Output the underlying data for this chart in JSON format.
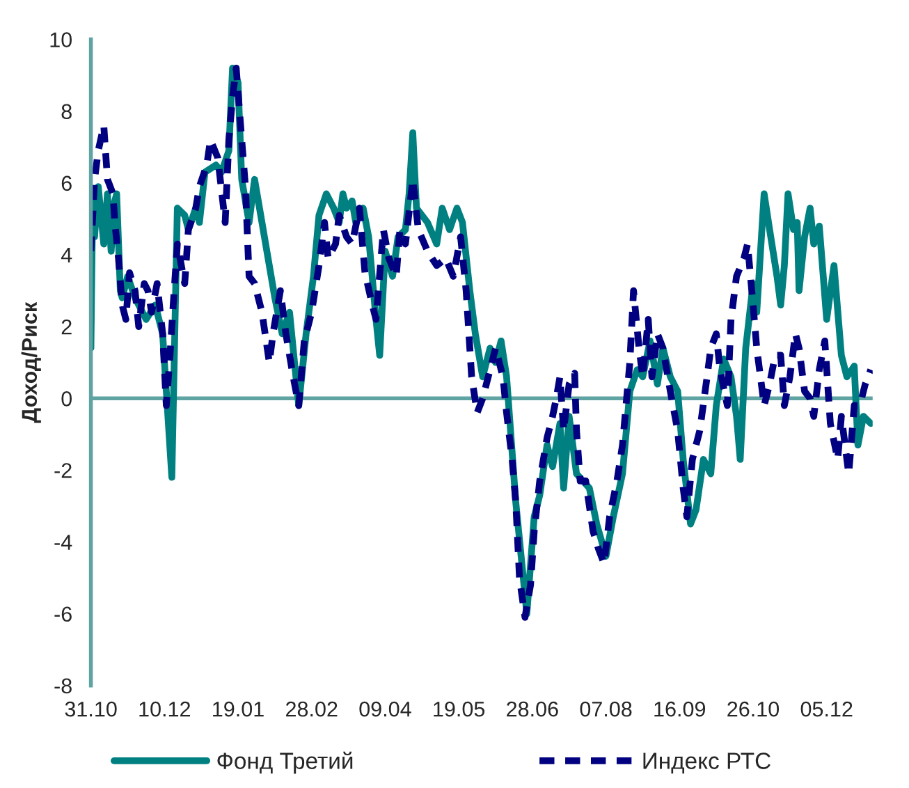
{
  "chart_data": {
    "type": "line",
    "ylabel": "Доход/Риск",
    "xlim": [
      "2000-10-31",
      "2001-12-30"
    ],
    "ylim": [
      -8,
      10
    ],
    "yticks": [
      -8,
      -6,
      -4,
      -2,
      0,
      2,
      4,
      6,
      8,
      10
    ],
    "xticks": [
      {
        "value": "2000-10-31",
        "label": "31.10"
      },
      {
        "value": "2000-12-10",
        "label": "10.12"
      },
      {
        "value": "2001-01-19",
        "label": "19.01"
      },
      {
        "value": "2001-02-28",
        "label": "28.02"
      },
      {
        "value": "2001-04-09",
        "label": "09.04"
      },
      {
        "value": "2001-05-19",
        "label": "19.05"
      },
      {
        "value": "2001-06-28",
        "label": "28.06"
      },
      {
        "value": "2001-08-07",
        "label": "07.08"
      },
      {
        "value": "2001-09-16",
        "label": "16.09"
      },
      {
        "value": "2001-10-26",
        "label": "26.10"
      },
      {
        "value": "2001-12-05",
        "label": "05.12"
      }
    ],
    "grid": false,
    "legend": "bottom",
    "marker": "none",
    "ref_lines": [
      {
        "axis": "y",
        "value": 0,
        "color": "#5fa3a3"
      }
    ],
    "series": [
      {
        "name": "Фонд Третий",
        "color": "#008080",
        "line_style": "solid",
        "x": [
          "2000-10-31",
          "2000-11-01",
          "2000-11-02",
          "2000-11-04",
          "2000-11-07",
          "2000-11-09",
          "2000-11-11",
          "2000-11-13",
          "2000-11-14",
          "2000-11-16",
          "2000-11-17",
          "2000-11-20",
          "2000-11-24",
          "2000-11-30",
          "2000-12-05",
          "2000-12-09",
          "2000-12-14",
          "2000-12-17",
          "2000-12-21",
          "2000-12-23",
          "2000-12-27",
          "2000-12-29",
          "2001-01-01",
          "2001-01-07",
          "2001-01-10",
          "2001-01-14",
          "2001-01-16",
          "2001-01-19",
          "2001-01-21",
          "2001-01-25",
          "2001-01-28",
          "2001-02-01",
          "2001-02-05",
          "2001-02-08",
          "2001-02-12",
          "2001-02-16",
          "2001-02-21",
          "2001-02-25",
          "2001-03-01",
          "2001-03-04",
          "2001-03-08",
          "2001-03-12",
          "2001-03-15",
          "2001-03-17",
          "2001-03-19",
          "2001-03-22",
          "2001-03-24",
          "2001-03-28",
          "2001-03-31",
          "2001-04-04",
          "2001-04-06",
          "2001-04-09",
          "2001-04-13",
          "2001-04-16",
          "2001-04-20",
          "2001-04-22",
          "2001-04-24",
          "2001-04-26",
          "2001-05-02",
          "2001-05-07",
          "2001-05-10",
          "2001-05-14",
          "2001-05-18",
          "2001-05-21",
          "2001-05-25",
          "2001-05-28",
          "2001-06-01",
          "2001-06-05",
          "2001-06-08",
          "2001-06-11",
          "2001-06-14",
          "2001-06-19",
          "2001-06-25",
          "2001-06-29",
          "2001-07-02",
          "2001-07-06",
          "2001-07-09",
          "2001-07-13",
          "2001-07-15",
          "2001-07-18",
          "2001-07-22",
          "2001-07-29",
          "2001-08-02",
          "2001-08-07",
          "2001-08-11",
          "2001-08-16",
          "2001-08-20",
          "2001-08-24",
          "2001-08-27",
          "2001-08-31",
          "2001-09-04",
          "2001-09-07",
          "2001-09-11",
          "2001-09-15",
          "2001-09-18",
          "2001-09-22",
          "2001-09-25",
          "2001-09-29",
          "2001-10-03",
          "2001-10-06",
          "2001-10-10",
          "2001-10-14",
          "2001-10-17",
          "2001-10-19",
          "2001-10-22",
          "2001-10-26",
          "2001-10-28",
          "2001-11-01",
          "2001-11-04",
          "2001-11-08",
          "2001-11-10",
          "2001-11-12",
          "2001-11-14",
          "2001-11-17",
          "2001-11-19",
          "2001-11-20",
          "2001-11-23",
          "2001-11-26",
          "2001-11-28",
          "2001-12-01",
          "2001-12-05",
          "2001-12-09",
          "2001-12-13",
          "2001-12-16",
          "2001-12-20",
          "2001-12-22",
          "2001-12-25",
          "2001-12-29"
        ],
        "values": [
          1.4,
          5.7,
          4.5,
          5.9,
          4.3,
          5.7,
          4.1,
          5.5,
          5.7,
          3.0,
          2.8,
          3.4,
          2.8,
          2.2,
          2.6,
          1.8,
          -2.2,
          5.3,
          5.1,
          4.7,
          5.3,
          4.9,
          6.3,
          6.5,
          6.3,
          6.9,
          9.2,
          8.8,
          6.1,
          4.9,
          6.1,
          4.9,
          3.7,
          2.8,
          1.8,
          2.4,
          -0.2,
          1.8,
          3.4,
          5.1,
          5.7,
          5.3,
          4.9,
          5.7,
          5.3,
          5.5,
          4.9,
          5.3,
          4.5,
          2.2,
          1.2,
          4.1,
          3.4,
          4.5,
          4.7,
          5.7,
          7.4,
          5.3,
          4.9,
          4.3,
          5.3,
          4.7,
          5.3,
          4.9,
          3.0,
          1.8,
          0.6,
          1.4,
          1.0,
          1.6,
          0.6,
          -2.9,
          -6.0,
          -3.3,
          -2.7,
          -1.3,
          -1.9,
          -0.7,
          -2.5,
          -0.5,
          -2.1,
          -2.5,
          -3.5,
          -4.4,
          -3.3,
          -2.1,
          0.2,
          0.8,
          0.6,
          1.6,
          0.4,
          1.4,
          0.6,
          0.2,
          -1.7,
          -3.5,
          -3.1,
          -1.7,
          -2.1,
          -0.2,
          1.1,
          0.6,
          -0.5,
          -1.7,
          1.4,
          3.2,
          2.4,
          5.7,
          4.7,
          3.4,
          2.6,
          3.7,
          5.7,
          4.7,
          4.9,
          3.0,
          4.5,
          5.3,
          4.3,
          4.8,
          2.2,
          3.7,
          1.2,
          0.6,
          0.9,
          -1.3,
          -0.5,
          -0.7
        ]
      },
      {
        "name": "Индекс РТС",
        "color": "#000080",
        "line_style": "dashed",
        "x": [
          "2000-10-31",
          "2000-11-02",
          "2000-11-04",
          "2000-11-07",
          "2000-11-09",
          "2000-11-12",
          "2000-11-13",
          "2000-11-15",
          "2000-11-17",
          "2000-11-19",
          "2000-11-21",
          "2000-11-24",
          "2000-11-26",
          "2000-11-29",
          "2000-12-01",
          "2000-12-03",
          "2000-12-06",
          "2000-12-09",
          "2000-12-11",
          "2000-12-13",
          "2000-12-15",
          "2000-12-17",
          "2000-12-21",
          "2000-12-23",
          "2000-12-27",
          "2000-12-29",
          "2001-01-02",
          "2001-01-04",
          "2001-01-08",
          "2001-01-12",
          "2001-01-14",
          "2001-01-16",
          "2001-01-18",
          "2001-01-21",
          "2001-01-23",
          "2001-01-25",
          "2001-01-28",
          "2001-02-01",
          "2001-02-05",
          "2001-02-07",
          "2001-02-11",
          "2001-02-14",
          "2001-02-18",
          "2001-02-21",
          "2001-02-24",
          "2001-02-28",
          "2001-03-04",
          "2001-03-07",
          "2001-03-09",
          "2001-03-13",
          "2001-03-15",
          "2001-03-19",
          "2001-03-22",
          "2001-03-26",
          "2001-03-29",
          "2001-04-02",
          "2001-04-04",
          "2001-04-08",
          "2001-04-11",
          "2001-04-15",
          "2001-04-17",
          "2001-04-20",
          "2001-04-24",
          "2001-04-27",
          "2001-05-02",
          "2001-05-07",
          "2001-05-12",
          "2001-05-16",
          "2001-05-20",
          "2001-05-23",
          "2001-05-26",
          "2001-05-29",
          "2001-06-01",
          "2001-06-05",
          "2001-06-08",
          "2001-06-12",
          "2001-06-14",
          "2001-06-17",
          "2001-06-19",
          "2001-06-21",
          "2001-06-24",
          "2001-06-27",
          "2001-06-29",
          "2001-07-02",
          "2001-07-04",
          "2001-07-06",
          "2001-07-09",
          "2001-07-11",
          "2001-07-13",
          "2001-07-15",
          "2001-07-18",
          "2001-07-21",
          "2001-07-22",
          "2001-07-24",
          "2001-07-27",
          "2001-07-31",
          "2001-08-03",
          "2001-08-06",
          "2001-08-09",
          "2001-08-13",
          "2001-08-16",
          "2001-08-20",
          "2001-08-22",
          "2001-08-25",
          "2001-08-27",
          "2001-08-30",
          "2001-09-01",
          "2001-09-04",
          "2001-09-07",
          "2001-09-11",
          "2001-09-15",
          "2001-09-18",
          "2001-09-20",
          "2001-09-23",
          "2001-09-27",
          "2001-10-01",
          "2001-10-03",
          "2001-10-06",
          "2001-10-08",
          "2001-10-12",
          "2001-10-14",
          "2001-10-17",
          "2001-10-21",
          "2001-10-23",
          "2001-10-26",
          "2001-10-28",
          "2001-11-01",
          "2001-11-04",
          "2001-11-07",
          "2001-11-10",
          "2001-11-12",
          "2001-11-15",
          "2001-11-18",
          "2001-11-20",
          "2001-11-23",
          "2001-11-26",
          "2001-11-28",
          "2001-12-01",
          "2001-12-04",
          "2001-12-07",
          "2001-12-11",
          "2001-12-13",
          "2001-12-17",
          "2001-12-20",
          "2001-12-23",
          "2001-12-26",
          "2001-12-29"
        ],
        "values": [
          4.1,
          6.1,
          6.9,
          7.6,
          6.1,
          5.7,
          4.9,
          3.9,
          2.6,
          2.2,
          3.5,
          3.0,
          2.0,
          3.2,
          3.0,
          2.4,
          3.2,
          1.8,
          -0.2,
          1.2,
          2.8,
          4.3,
          3.2,
          4.7,
          5.3,
          5.9,
          6.5,
          7.2,
          6.7,
          4.9,
          7.2,
          8.4,
          9.2,
          7.2,
          5.9,
          3.4,
          3.2,
          2.4,
          1.0,
          1.8,
          3.0,
          1.8,
          0.6,
          -0.2,
          1.6,
          2.4,
          3.7,
          4.9,
          3.9,
          4.3,
          5.1,
          4.5,
          4.3,
          5.3,
          3.5,
          2.6,
          2.2,
          4.7,
          3.9,
          3.4,
          4.7,
          4.3,
          6.1,
          4.7,
          4.1,
          3.7,
          3.9,
          3.4,
          4.5,
          3.0,
          0.6,
          -0.4,
          0.0,
          0.8,
          1.4,
          0.6,
          -0.4,
          -1.7,
          -2.9,
          -5.0,
          -6.1,
          -5.2,
          -3.7,
          -2.3,
          -1.7,
          -1.1,
          -0.5,
          0.0,
          0.6,
          -0.9,
          0.4,
          0.7,
          -0.9,
          -2.3,
          -2.3,
          -3.7,
          -4.2,
          -4.6,
          -3.3,
          -2.3,
          -1.3,
          1.0,
          3.0,
          1.4,
          0.6,
          2.2,
          0.6,
          1.8,
          1.4,
          0.2,
          -0.9,
          -2.5,
          -3.3,
          -1.7,
          -0.9,
          0.6,
          1.4,
          1.8,
          0.8,
          -0.2,
          2.2,
          3.4,
          3.9,
          4.3,
          2.6,
          1.4,
          -0.2,
          0.4,
          1.2,
          1.2,
          -0.2,
          0.6,
          1.8,
          1.4,
          0.2,
          0.0,
          -0.5,
          0.8,
          1.6,
          -0.7,
          -1.7,
          -0.5,
          -2.1,
          -0.2,
          -0.2,
          0.4,
          0.8
        ]
      }
    ]
  }
}
